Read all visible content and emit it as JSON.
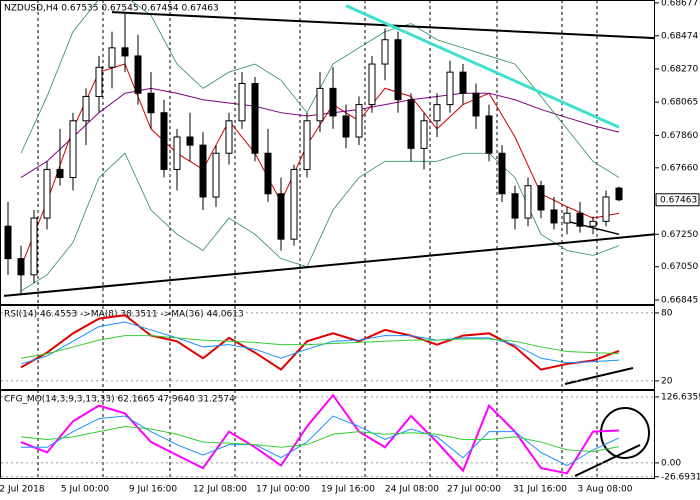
{
  "chart_data": [
    {
      "type": "candlestick",
      "title": "NZDUSD,H4 0.67535 0.67545 0.67454 0.67463",
      "x_tick_labels": [
        "2 Jul 2018",
        "5 Jul 00:00",
        "9 Jul 16:00",
        "12 Jul 08:00",
        "17 Jul 00:00",
        "19 Jul 16:00",
        "24 Jul 08:00",
        "27 Jul 00:00",
        "31 Jul 16:00",
        "3 Aug 08:00"
      ],
      "open": [
        0.673,
        0.671,
        0.67,
        0.6735,
        0.6765,
        0.676,
        0.6795,
        0.681,
        0.6828,
        0.684,
        0.6835,
        0.6812,
        0.68,
        0.6765,
        0.6785,
        0.678,
        0.6748,
        0.6775,
        0.6795,
        0.6818,
        0.6775,
        0.675,
        0.6722,
        0.6765,
        0.6795,
        0.6815,
        0.6798,
        0.6785,
        0.6805,
        0.683,
        0.6845,
        0.6808,
        0.6778,
        0.6795,
        0.6805,
        0.6825,
        0.6812,
        0.6798,
        0.6775,
        0.675,
        0.6735,
        0.6755,
        0.674,
        0.6732,
        0.6738,
        0.673,
        0.6733,
        0.67535
      ],
      "high": [
        0.6745,
        0.6718,
        0.674,
        0.677,
        0.679,
        0.68,
        0.6815,
        0.6835,
        0.685,
        0.6862,
        0.6848,
        0.6825,
        0.6808,
        0.679,
        0.68,
        0.6788,
        0.678,
        0.68,
        0.6825,
        0.6822,
        0.679,
        0.676,
        0.6768,
        0.68,
        0.6825,
        0.6828,
        0.6805,
        0.681,
        0.6835,
        0.6852,
        0.685,
        0.6812,
        0.68,
        0.6812,
        0.6832,
        0.683,
        0.6818,
        0.6805,
        0.678,
        0.6755,
        0.676,
        0.6758,
        0.6748,
        0.6742,
        0.6745,
        0.6736,
        0.6752,
        0.67545
      ],
      "low": [
        0.67,
        0.6688,
        0.6695,
        0.6728,
        0.6755,
        0.6752,
        0.678,
        0.68,
        0.6815,
        0.6825,
        0.6805,
        0.679,
        0.676,
        0.6752,
        0.677,
        0.674,
        0.6742,
        0.6768,
        0.679,
        0.677,
        0.6745,
        0.6715,
        0.6718,
        0.676,
        0.6788,
        0.679,
        0.6778,
        0.678,
        0.68,
        0.682,
        0.68,
        0.677,
        0.6765,
        0.6785,
        0.68,
        0.6805,
        0.679,
        0.677,
        0.6745,
        0.6728,
        0.673,
        0.6735,
        0.6728,
        0.6725,
        0.6726,
        0.6725,
        0.673,
        0.67454
      ],
      "close": [
        0.671,
        0.67,
        0.6735,
        0.6765,
        0.676,
        0.6795,
        0.681,
        0.6828,
        0.684,
        0.6835,
        0.6812,
        0.68,
        0.6765,
        0.6785,
        0.678,
        0.6748,
        0.6775,
        0.6795,
        0.6818,
        0.6775,
        0.675,
        0.6722,
        0.6765,
        0.6795,
        0.6815,
        0.6798,
        0.6785,
        0.6805,
        0.683,
        0.6845,
        0.6808,
        0.6778,
        0.6795,
        0.6805,
        0.6825,
        0.6812,
        0.6798,
        0.6775,
        0.675,
        0.6735,
        0.6755,
        0.674,
        0.6732,
        0.6738,
        0.673,
        0.6733,
        0.6748,
        0.67463
      ],
      "series": [
        {
          "color": "#d00000",
          "values": [
            0.6705,
            0.6745,
            0.679,
            0.6825,
            0.683,
            0.679,
            0.6775,
            0.6765,
            0.6795,
            0.6775,
            0.6745,
            0.678,
            0.6805,
            0.6795,
            0.6815,
            0.681,
            0.679,
            0.6805,
            0.6812,
            0.6785,
            0.675,
            0.6742,
            0.6735,
            0.6738
          ]
        },
        {
          "color": "#800080",
          "values": [
            0.676,
            0.677,
            0.6785,
            0.68,
            0.6812,
            0.6815,
            0.6812,
            0.6808,
            0.6806,
            0.6804,
            0.68,
            0.6798,
            0.68,
            0.6802,
            0.6805,
            0.6808,
            0.681,
            0.6812,
            0.6812,
            0.6808,
            0.6802,
            0.6797,
            0.6792,
            0.6788
          ]
        },
        {
          "color": "#2e8b57",
          "values": [
            0.6775,
            0.681,
            0.685,
            0.687,
            0.6872,
            0.686,
            0.683,
            0.6815,
            0.6825,
            0.683,
            0.682,
            0.68,
            0.683,
            0.684,
            0.685,
            0.6855,
            0.6845,
            0.684,
            0.6835,
            0.683,
            0.681,
            0.679,
            0.677,
            0.676
          ]
        },
        {
          "color": "#2e8b57",
          "values": [
            0.669,
            0.67,
            0.672,
            0.676,
            0.6775,
            0.674,
            0.6725,
            0.6715,
            0.6735,
            0.6725,
            0.671,
            0.6705,
            0.674,
            0.676,
            0.677,
            0.677,
            0.677,
            0.6775,
            0.6775,
            0.676,
            0.6725,
            0.6715,
            0.6712,
            0.6718
          ]
        }
      ],
      "trendlines": [
        {
          "color": "#000000",
          "values": [
            0.6862,
            0.6846
          ]
        },
        {
          "color": "#000000",
          "values": [
            0.6687,
            0.6725
          ]
        },
        {
          "color": "#40e0d0",
          "values": [
            0.6866,
            0.6791
          ]
        },
        {
          "color": "#000000",
          "values": [
            0.6733,
            0.6725
          ]
        }
      ],
      "ylim": [
        0.66814,
        0.68695
      ],
      "yticks": [
        0.68677,
        0.68474,
        {
          "value": 0.6827,
          "label": "0.68270"
        },
        0.68065,
        {
          "value": 0.6786,
          "label": "0.67860"
        },
        {
          "value": 0.6766,
          "label": "0.67660"
        },
        {
          "value": 0.6725,
          "label": "0.67250"
        },
        {
          "value": 0.6705,
          "label": "0.67050"
        },
        0.66845
      ]
    },
    {
      "type": "line",
      "title": "RSI(14) 46.4553 ->MA(8) 38.3511 ->MA(36) 44.0613",
      "series": [
        {
          "color": "#e00000",
          "values": [
            32,
            45,
            62,
            75,
            78,
            60,
            55,
            40,
            58,
            45,
            30,
            55,
            62,
            55,
            65,
            60,
            52,
            60,
            62,
            50,
            30,
            35,
            38,
            46.4553
          ]
        },
        {
          "color": "#1e90ff",
          "values": [
            35,
            42,
            55,
            68,
            72,
            65,
            58,
            50,
            52,
            48,
            40,
            48,
            55,
            56,
            60,
            60,
            56,
            58,
            58,
            52,
            40,
            36,
            37,
            38.3511
          ]
        },
        {
          "color": "#32cd32",
          "values": [
            40,
            44,
            50,
            56,
            60,
            60,
            58,
            56,
            55,
            54,
            52,
            52,
            53,
            54,
            55,
            56,
            56,
            57,
            57,
            55,
            50,
            46,
            45,
            44.0613
          ]
        }
      ],
      "ylim": [
        12,
        87
      ],
      "yticks": [
        20,
        80
      ]
    },
    {
      "type": "line",
      "title": "CFG_MO(14,3,9,3,13,33) 62.1665 47.9640 31.2574",
      "series": [
        {
          "color": "#ff00ff",
          "values": [
            40,
            20,
            80,
            110,
            95,
            40,
            15,
            -10,
            60,
            30,
            -5,
            70,
            130,
            60,
            30,
            90,
            40,
            -15,
            110,
            60,
            -10,
            -20,
            60,
            62.1665
          ]
        },
        {
          "color": "#1e90ff",
          "values": [
            30,
            30,
            60,
            85,
            90,
            60,
            35,
            15,
            35,
            35,
            10,
            40,
            90,
            70,
            45,
            65,
            50,
            10,
            60,
            60,
            20,
            -5,
            25,
            47.964
          ]
        },
        {
          "color": "#32cd32",
          "values": [
            50,
            45,
            50,
            60,
            70,
            65,
            55,
            40,
            38,
            35,
            30,
            35,
            55,
            60,
            55,
            58,
            55,
            45,
            45,
            50,
            40,
            25,
            22,
            31.2574
          ]
        }
      ],
      "ylim": [
        -29,
        140
      ],
      "yticks": [
        126.6359,
        {
          "value": 0,
          "label": "0.00"
        },
        -26.6931
      ]
    }
  ]
}
